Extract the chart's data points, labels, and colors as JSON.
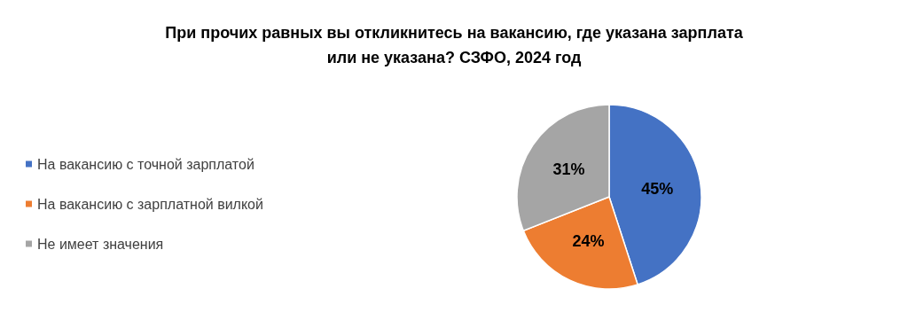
{
  "chart_data": {
    "type": "pie",
    "title": "При прочих равных вы откликнитесь на вакансию, где указана зарплата\nили не указана? СЗФО, 2024 год",
    "categories": [
      "На вакансию с точной зарплатой",
      "На вакансию с зарплатной вилкой",
      "Не имеет значения"
    ],
    "values": [
      45,
      24,
      31
    ],
    "colors": [
      "#4472c4",
      "#ed7d31",
      "#a5a5a5"
    ],
    "value_labels": [
      "45%",
      "24%",
      "31%"
    ],
    "legend": "left"
  }
}
